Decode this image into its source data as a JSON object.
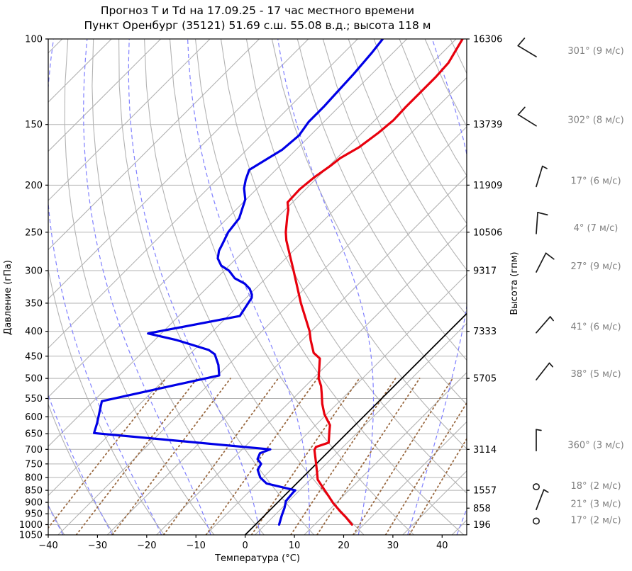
{
  "title": "Прогноз T и Td на 17.09.25 - 17 час местного времени",
  "subtitle": "Пункт Оренбург (35121) 51.69 с.ш. 55.08 в.д.; высота 118 м",
  "chart_data": {
    "type": "line",
    "subtype": "skew-T log-P aerological diagram",
    "x_axis": {
      "label": "Температура (°C)",
      "ticks": [
        -40,
        -30,
        -20,
        -10,
        0,
        10,
        20,
        30,
        40
      ],
      "min": -40,
      "max": 45
    },
    "y_axis": {
      "label": "Давление (гПа)",
      "scale": "log",
      "min": 100,
      "max": 1050,
      "ticks": [
        100,
        150,
        200,
        250,
        300,
        350,
        400,
        450,
        500,
        550,
        600,
        650,
        700,
        750,
        800,
        850,
        900,
        950,
        1000,
        1050
      ]
    },
    "height_axis": {
      "label": "Высота (гпм)"
    },
    "levels": [
      {
        "p": 100,
        "height": "16306",
        "wind_label": "301° (9 м/с)",
        "dir": 301,
        "speed": 9
      },
      {
        "p": 150,
        "height": "13739",
        "wind_label": "302° (8 м/с)",
        "dir": 302,
        "speed": 8
      },
      {
        "p": 200,
        "height": "11909",
        "wind_label": "17° (6 м/с)",
        "dir": 17,
        "speed": 6
      },
      {
        "p": 250,
        "height": "10506",
        "wind_label": "4° (7 м/с)",
        "dir": 4,
        "speed": 7
      },
      {
        "p": 300,
        "height": "9317",
        "wind_label": "27° (9 м/с)",
        "dir": 27,
        "speed": 9
      },
      {
        "p": 400,
        "height": "7333",
        "wind_label": "41° (6 м/с)",
        "dir": 41,
        "speed": 6
      },
      {
        "p": 500,
        "height": "5705",
        "wind_label": "38° (5 м/с)",
        "dir": 38,
        "speed": 5
      },
      {
        "p": 700,
        "height": "3114",
        "wind_label": "360° (3 м/с)",
        "dir": 360,
        "speed": 3
      },
      {
        "p": 850,
        "height": "1557",
        "wind_label": "18° (2 м/с)",
        "dir": 18,
        "speed": 2
      },
      {
        "p": 925,
        "height": "858",
        "wind_label": "21° (3 м/с)",
        "dir": 21,
        "speed": 3
      },
      {
        "p": 1000,
        "height": "196",
        "wind_label": "17° (2 м/с)",
        "dir": 17,
        "speed": 2
      }
    ],
    "series": [
      {
        "name": "temperature",
        "color": "#e8000d",
        "points": [
          [
            1000,
            19.6
          ],
          [
            965,
            16.8
          ],
          [
            940,
            14.6
          ],
          [
            903,
            11.4
          ],
          [
            873,
            9.0
          ],
          [
            850,
            7.1
          ],
          [
            808,
            3.5
          ],
          [
            776,
            1.6
          ],
          [
            738,
            -0.8
          ],
          [
            702,
            -3.2
          ],
          [
            692,
            -3.5
          ],
          [
            678,
            -1.8
          ],
          [
            645,
            -3.8
          ],
          [
            624,
            -5.1
          ],
          [
            593,
            -8.4
          ],
          [
            564,
            -11.0
          ],
          [
            536,
            -13.3
          ],
          [
            518,
            -14.9
          ],
          [
            500,
            -16.9
          ],
          [
            455,
            -20.7
          ],
          [
            443,
            -23.1
          ],
          [
            417,
            -26.3
          ],
          [
            400,
            -28.3
          ],
          [
            350,
            -35.8
          ],
          [
            300,
            -43.9
          ],
          [
            260,
            -51.5
          ],
          [
            250,
            -53.3
          ],
          [
            232,
            -56.2
          ],
          [
            225,
            -57.3
          ],
          [
            217,
            -59.0
          ],
          [
            204,
            -59.2
          ],
          [
            193,
            -58.7
          ],
          [
            182,
            -57.7
          ],
          [
            176,
            -57.3
          ],
          [
            167,
            -55.7
          ],
          [
            156,
            -54.7
          ],
          [
            147,
            -54.2
          ],
          [
            138,
            -54.4
          ],
          [
            120,
            -54.4
          ],
          [
            112,
            -54.7
          ],
          [
            100,
            -56.7
          ]
        ]
      },
      {
        "name": "dewpoint",
        "color": "#0000e6",
        "points": [
          [
            1000,
            4.8
          ],
          [
            958,
            3.5
          ],
          [
            924,
            2.5
          ],
          [
            894,
            1.4
          ],
          [
            858,
            1.1
          ],
          [
            850,
            1.1
          ],
          [
            823,
            -6.1
          ],
          [
            800,
            -8.6
          ],
          [
            771,
            -10.7
          ],
          [
            750,
            -11.2
          ],
          [
            733,
            -12.9
          ],
          [
            713,
            -13.6
          ],
          [
            700,
            -12.3
          ],
          [
            648,
            -51.4
          ],
          [
            618,
            -52.8
          ],
          [
            557,
            -56.3
          ],
          [
            493,
            -37.7
          ],
          [
            469,
            -40.0
          ],
          [
            446,
            -42.9
          ],
          [
            437,
            -45.0
          ],
          [
            417,
            -53.5
          ],
          [
            404,
            -60.7
          ],
          [
            372,
            -45.6
          ],
          [
            341,
            -46.9
          ],
          [
            336,
            -47.5
          ],
          [
            327,
            -49.1
          ],
          [
            319,
            -51.2
          ],
          [
            311,
            -54.3
          ],
          [
            300,
            -57.0
          ],
          [
            293,
            -59.6
          ],
          [
            283,
            -61.8
          ],
          [
            273,
            -63.1
          ],
          [
            264,
            -63.8
          ],
          [
            250,
            -65.0
          ],
          [
            234,
            -65.6
          ],
          [
            214,
            -68.2
          ],
          [
            203,
            -70.7
          ],
          [
            195,
            -72.1
          ],
          [
            186,
            -73.4
          ],
          [
            169,
            -70.8
          ],
          [
            158,
            -70.3
          ],
          [
            148,
            -71.1
          ],
          [
            138,
            -71.1
          ],
          [
            128,
            -71.4
          ],
          [
            118,
            -71.7
          ],
          [
            107,
            -72.3
          ],
          [
            100,
            -72.9
          ]
        ]
      }
    ],
    "background": {
      "zero_isotherm": {
        "t": 0,
        "color": "#000000"
      },
      "isotherms": {
        "color": "#b3b3b3",
        "values": [
          -138,
          -128,
          -118,
          -108,
          -98,
          -88,
          -78,
          -68,
          -58,
          -48,
          -38,
          -28,
          -18,
          -8,
          2,
          12,
          22,
          32,
          42
        ]
      },
      "dry_adiabats": {
        "color": "#b3b3b3",
        "theta_c": [
          -60,
          -50,
          -40,
          -30,
          -20,
          -10,
          0,
          10,
          20,
          30,
          40,
          50,
          60,
          70,
          80,
          90,
          100,
          110,
          120,
          130,
          140,
          150
        ]
      },
      "moist_adiabats": {
        "color": "#8080ff",
        "style": "dashed",
        "start_t": [
          -47,
          -37,
          -27,
          -17,
          -7,
          3,
          13,
          23,
          33,
          43
        ]
      },
      "mixing_ratio": {
        "color": "#9a6a42",
        "style": "dotted",
        "p_top": 500,
        "w": [
          0.0001,
          0.0002,
          0.0004,
          0.001,
          0.002,
          0.004,
          0.007,
          0.01,
          0.016,
          0.024,
          0.032
        ]
      }
    }
  }
}
